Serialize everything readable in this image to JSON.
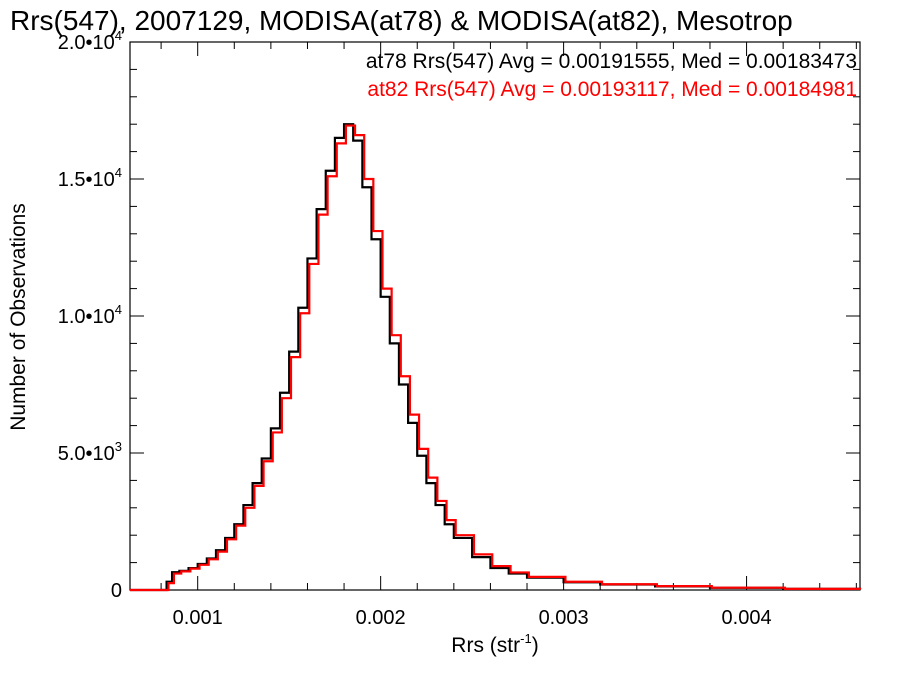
{
  "chart_data": {
    "type": "line",
    "title": "Rrs(547), 2007129, MODISA(at78) & MODISA(at82), Mesotrop",
    "xlabel_main": "Rrs (str",
    "xlabel_sup": "-1",
    "xlabel_close": ")",
    "ylabel": "Number of Observations",
    "xlim": [
      0.00063,
      0.00462
    ],
    "ylim": [
      0,
      20000
    ],
    "x_ticks": [
      {
        "value": 0.001,
        "label": "0.001"
      },
      {
        "value": 0.002,
        "label": "0.002"
      },
      {
        "value": 0.003,
        "label": "0.003"
      },
      {
        "value": 0.004,
        "label": "0.004"
      }
    ],
    "y_ticks": [
      {
        "value": 0,
        "base": "0",
        "exp": ""
      },
      {
        "value": 5000,
        "base": "5.0•10",
        "exp": "3"
      },
      {
        "value": 10000,
        "base": "1.0•10",
        "exp": "4"
      },
      {
        "value": 15000,
        "base": "1.5•10",
        "exp": "4"
      },
      {
        "value": 20000,
        "base": "2.0•10",
        "exp": "4"
      }
    ],
    "annotations": [
      "at78 Rrs(547) Avg = 0.00191555, Med = 0.00183473",
      "at82 Rrs(547) Avg = 0.00193117, Med = 0.00184981"
    ],
    "colors": {
      "at78": "#000000",
      "at82": "#ff0000"
    },
    "series": [
      {
        "key": "at78",
        "color": "#000000",
        "points": [
          [
            0.00063,
            0
          ],
          [
            0.0008,
            0
          ],
          [
            0.00083,
            300
          ],
          [
            0.00086,
            650
          ],
          [
            0.0009,
            700
          ],
          [
            0.00095,
            800
          ],
          [
            0.001,
            950
          ],
          [
            0.00105,
            1150
          ],
          [
            0.0011,
            1450
          ],
          [
            0.00115,
            1900
          ],
          [
            0.0012,
            2400
          ],
          [
            0.00125,
            3100
          ],
          [
            0.0013,
            3900
          ],
          [
            0.00135,
            4800
          ],
          [
            0.0014,
            5900
          ],
          [
            0.00145,
            7200
          ],
          [
            0.0015,
            8700
          ],
          [
            0.00155,
            10300
          ],
          [
            0.0016,
            12100
          ],
          [
            0.00165,
            13900
          ],
          [
            0.0017,
            15300
          ],
          [
            0.00175,
            16500
          ],
          [
            0.0018,
            17000
          ],
          [
            0.00185,
            16400
          ],
          [
            0.0019,
            14700
          ],
          [
            0.00195,
            12800
          ],
          [
            0.002,
            10700
          ],
          [
            0.00205,
            9000
          ],
          [
            0.0021,
            7500
          ],
          [
            0.00215,
            6100
          ],
          [
            0.0022,
            4900
          ],
          [
            0.00225,
            3900
          ],
          [
            0.0023,
            3100
          ],
          [
            0.00235,
            2400
          ],
          [
            0.0024,
            1900
          ],
          [
            0.0025,
            1200
          ],
          [
            0.0026,
            800
          ],
          [
            0.0027,
            600
          ],
          [
            0.0028,
            450
          ],
          [
            0.003,
            280
          ],
          [
            0.0032,
            200
          ],
          [
            0.0035,
            130
          ],
          [
            0.0038,
            80
          ],
          [
            0.0042,
            40
          ],
          [
            0.00462,
            15
          ]
        ]
      },
      {
        "key": "at82",
        "color": "#ff0000",
        "points": [
          [
            0.00063,
            0
          ],
          [
            0.00081,
            0
          ],
          [
            0.00084,
            250
          ],
          [
            0.00087,
            600
          ],
          [
            0.00091,
            680
          ],
          [
            0.00096,
            780
          ],
          [
            0.00101,
            920
          ],
          [
            0.00106,
            1120
          ],
          [
            0.00111,
            1400
          ],
          [
            0.00116,
            1850
          ],
          [
            0.00121,
            2350
          ],
          [
            0.00126,
            3000
          ],
          [
            0.00131,
            3800
          ],
          [
            0.00136,
            4700
          ],
          [
            0.00141,
            5750
          ],
          [
            0.00146,
            7000
          ],
          [
            0.00151,
            8500
          ],
          [
            0.00156,
            10100
          ],
          [
            0.00161,
            11900
          ],
          [
            0.00166,
            13700
          ],
          [
            0.00171,
            15100
          ],
          [
            0.00176,
            16300
          ],
          [
            0.00181,
            16950
          ],
          [
            0.00186,
            16600
          ],
          [
            0.00191,
            15000
          ],
          [
            0.00196,
            13100
          ],
          [
            0.00201,
            11000
          ],
          [
            0.00206,
            9300
          ],
          [
            0.00211,
            7800
          ],
          [
            0.00216,
            6400
          ],
          [
            0.00221,
            5150
          ],
          [
            0.00226,
            4100
          ],
          [
            0.00231,
            3250
          ],
          [
            0.00236,
            2550
          ],
          [
            0.00241,
            2000
          ],
          [
            0.00251,
            1300
          ],
          [
            0.00261,
            870
          ],
          [
            0.00271,
            640
          ],
          [
            0.00281,
            480
          ],
          [
            0.00301,
            300
          ],
          [
            0.00321,
            210
          ],
          [
            0.00351,
            140
          ],
          [
            0.00381,
            85
          ],
          [
            0.00421,
            42
          ],
          [
            0.00462,
            16
          ]
        ]
      }
    ]
  }
}
